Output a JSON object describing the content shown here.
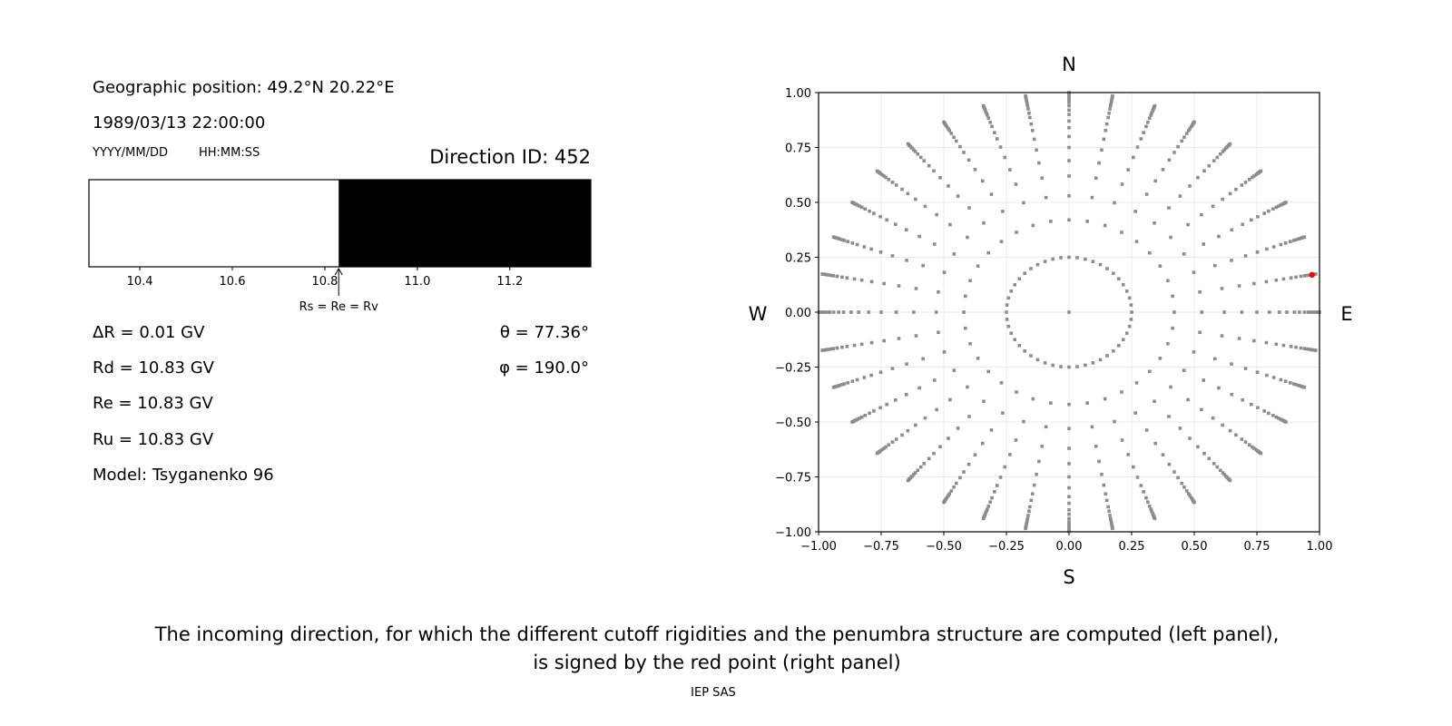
{
  "left_panel": {
    "position": "Geographic position: 49.2°N 20.22°E",
    "datetime": "1989/03/13 22:00:00",
    "date_format": "YYYY/MM/DD",
    "time_format": "HH:MM:SS",
    "direction_id": "Direction ID: 452",
    "delta_r": "ΔR = 0.01 GV",
    "rd": "Rd = 10.83 GV",
    "re": "Re = 10.83 GV",
    "ru": "Ru = 10.83 GV",
    "model": "Model: Tsyganenko 96",
    "theta": "θ = 77.36°",
    "phi": "φ = 190.0°"
  },
  "caption": {
    "line1": "The incoming direction, for which the different cutoff rigidities and the penumbra structure are computed (left panel),",
    "line2": "is signed by the red point (right panel)",
    "credit": "IEP SAS"
  },
  "chart_data": [
    {
      "type": "bar",
      "description_kind": "penumbra",
      "xlim": [
        10.29,
        11.375
      ],
      "xticks": [
        "10.4",
        "10.6",
        "10.8",
        "11.0",
        "11.2"
      ],
      "xtick_values": [
        10.4,
        10.6,
        10.8,
        11.0,
        11.2
      ],
      "segments": [
        {
          "from": 10.29,
          "to": 10.83,
          "color": "#ffffff"
        },
        {
          "from": 10.83,
          "to": 11.375,
          "color": "#000000"
        }
      ],
      "annotation": {
        "text": "Rs = Re = Rv",
        "x": 10.83
      }
    },
    {
      "type": "scatter",
      "xlim": [
        -1,
        1
      ],
      "ylim": [
        -1,
        1
      ],
      "grid": true,
      "xticks": [
        "−1.00",
        "−0.75",
        "−0.50",
        "−0.25",
        "0.00",
        "0.25",
        "0.50",
        "0.75",
        "1.00"
      ],
      "yticks": [
        "−1.00",
        "−0.75",
        "−0.50",
        "−0.25",
        "0.00",
        "0.25",
        "0.50",
        "0.75",
        "1.00"
      ],
      "tick_values": [
        -1,
        -0.75,
        -0.5,
        -0.25,
        0,
        0.25,
        0.5,
        0.75,
        1
      ],
      "compass": {
        "north": "N",
        "south": "S",
        "west": "W",
        "east": "E"
      },
      "point_color": "#8c8c8c",
      "highlight_color": "#ff0000",
      "grid_points": {
        "center": [
          0,
          0
        ],
        "ring_radius": 0.25,
        "ring_step_deg": 7.5,
        "spoke_step_deg": 10,
        "spoke_radii": [
          0.42,
          0.53,
          0.62,
          0.69,
          0.75,
          0.8,
          0.84,
          0.87,
          0.9,
          0.92,
          0.94,
          0.955,
          0.965,
          0.975,
          0.983,
          0.99,
          0.995,
          1.0
        ]
      },
      "highlight_point": {
        "x": 0.97,
        "y": 0.17
      }
    }
  ]
}
